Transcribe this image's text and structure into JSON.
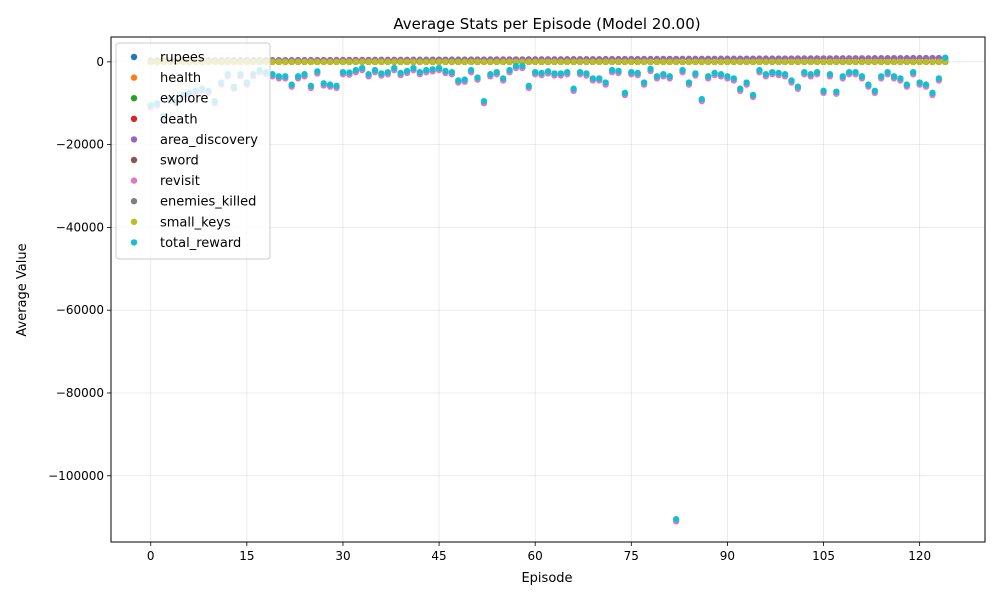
{
  "chart_data": {
    "type": "scatter",
    "title": "Average Stats per Episode (Model 20.00)",
    "xlabel": "Episode",
    "ylabel": "Average Value",
    "xlim": [
      -6.2,
      130.2
    ],
    "ylim": [
      -116000,
      6000
    ],
    "x_ticks": [
      0,
      15,
      30,
      45,
      60,
      75,
      90,
      105,
      120
    ],
    "x_tick_labels": [
      "0",
      "15",
      "30",
      "45",
      "60",
      "75",
      "90",
      "105",
      "120"
    ],
    "y_ticks": [
      0,
      -20000,
      -40000,
      -60000,
      -80000,
      -100000
    ],
    "y_tick_labels": [
      "0",
      "−20000",
      "−40000",
      "−60000",
      "−80000",
      "−100000"
    ],
    "grid": true,
    "legend_position": "top-left",
    "x": [
      0,
      1,
      2,
      3,
      4,
      5,
      6,
      7,
      8,
      9,
      10,
      11,
      12,
      13,
      14,
      15,
      16,
      17,
      18,
      19,
      20,
      21,
      22,
      23,
      24,
      25,
      26,
      27,
      28,
      29,
      30,
      31,
      32,
      33,
      34,
      35,
      36,
      37,
      38,
      39,
      40,
      41,
      42,
      43,
      44,
      45,
      46,
      47,
      48,
      49,
      50,
      51,
      52,
      53,
      54,
      55,
      56,
      57,
      58,
      59,
      60,
      61,
      62,
      63,
      64,
      65,
      66,
      67,
      68,
      69,
      70,
      71,
      72,
      73,
      74,
      75,
      76,
      77,
      78,
      79,
      80,
      81,
      82,
      83,
      84,
      85,
      86,
      87,
      88,
      89,
      90,
      91,
      92,
      93,
      94,
      95,
      96,
      97,
      98,
      99,
      100,
      101,
      102,
      103,
      104,
      105,
      106,
      107,
      108,
      109,
      110,
      111,
      112,
      113,
      114,
      115,
      116,
      117,
      118,
      119,
      120,
      121,
      122,
      123,
      124
    ],
    "total_reward": [
      -10500,
      -10000,
      -13000,
      -9000,
      -9500,
      -8000,
      -7500,
      -7000,
      -6500,
      -7000,
      -9500,
      -5000,
      -3000,
      -6000,
      -3000,
      -5000,
      -3000,
      -2000,
      -2500,
      -3000,
      -3500,
      -3500,
      -5500,
      -3500,
      -3000,
      -5800,
      -2300,
      -5200,
      -5500,
      -5800,
      -2500,
      -2600,
      -2000,
      -1500,
      -3000,
      -2000,
      -2800,
      -2500,
      -1500,
      -2700,
      -2200,
      -1500,
      -2500,
      -2000,
      -1800,
      -1500,
      -2200,
      -2500,
      -4500,
      -4300,
      -2000,
      -3800,
      -9500,
      -3000,
      -2500,
      -4000,
      -2000,
      -1000,
      -1000,
      -5800,
      -2500,
      -2700,
      -2300,
      -2800,
      -2800,
      -2500,
      -6500,
      -2500,
      -2800,
      -4000,
      -4000,
      -5000,
      -2000,
      -2200,
      -7500,
      -2500,
      -2700,
      -5000,
      -1700,
      -3500,
      -3000,
      -3500,
      -110500,
      -2000,
      -5000,
      -2800,
      -9000,
      -3500,
      -2700,
      -3000,
      -3500,
      -4000,
      -6500,
      -5000,
      -8000,
      -2000,
      -3000,
      -2500,
      -2700,
      -3000,
      -4500,
      -6000,
      -2500,
      -3000,
      -2500,
      -7000,
      -3000,
      -7200,
      -3500,
      -2500,
      -2500,
      -3500,
      -5500,
      -7000,
      -3500,
      -2500,
      -3500,
      -4000,
      -5500,
      -2500,
      -5000,
      -5500,
      -7500,
      -4000,
      1000
    ],
    "series": [
      {
        "name": "rupees",
        "color": "#1f77b4"
      },
      {
        "name": "health",
        "color": "#ff7f0e"
      },
      {
        "name": "explore",
        "color": "#2ca02c"
      },
      {
        "name": "death",
        "color": "#d62728"
      },
      {
        "name": "area_discovery",
        "color": "#9467bd"
      },
      {
        "name": "sword",
        "color": "#8c564b"
      },
      {
        "name": "revisit",
        "color": "#e377c2"
      },
      {
        "name": "enemies_killed",
        "color": "#7f7f7f"
      },
      {
        "name": "small_keys",
        "color": "#bcbd22"
      },
      {
        "name": "total_reward",
        "color": "#17becf"
      }
    ]
  }
}
